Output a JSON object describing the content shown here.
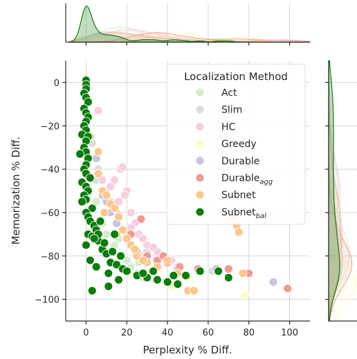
{
  "chart_data": {
    "type": "scatter",
    "xlabel": "Perplexity % Diff.",
    "ylabel": "Memorization % Diff.",
    "xlim": [
      -10,
      110
    ],
    "ylim": [
      -110,
      10
    ],
    "xticks": [
      0,
      20,
      40,
      60,
      80,
      100
    ],
    "yticks": [
      0,
      -20,
      -40,
      -60,
      -80,
      -100
    ],
    "xtick_labels": [
      "0",
      "20",
      "40",
      "60",
      "80",
      "100"
    ],
    "ytick_labels": [
      "0",
      "−20",
      "−40",
      "−60",
      "−80",
      "−100"
    ],
    "grid": true,
    "legend": {
      "title": "Localization Method",
      "placement": "upper-right",
      "entries": [
        {
          "label": "Act",
          "sub": ""
        },
        {
          "label": "Slim",
          "sub": ""
        },
        {
          "label": "HC",
          "sub": ""
        },
        {
          "label": "Greedy",
          "sub": ""
        },
        {
          "label": "Durable",
          "sub": ""
        },
        {
          "label": "Durable",
          "sub": "agg"
        },
        {
          "label": "Subnet",
          "sub": ""
        },
        {
          "label": "Subnet",
          "sub": "bal"
        }
      ]
    },
    "series": [
      {
        "name": "Act",
        "color": "#d4edcc",
        "points": [
          [
            8,
            -65
          ],
          [
            10,
            -70
          ],
          [
            14,
            -75
          ],
          [
            18,
            -80
          ],
          [
            22,
            -85
          ],
          [
            25,
            -88
          ],
          [
            28,
            -90
          ],
          [
            12,
            -78
          ],
          [
            5,
            -55
          ],
          [
            20,
            -82
          ],
          [
            16,
            -72
          ],
          [
            26,
            -83
          ]
        ]
      },
      {
        "name": "Slim",
        "color": "#dcdcdc",
        "points": [
          [
            3,
            -28
          ],
          [
            6,
            -40
          ],
          [
            10,
            -50
          ],
          [
            15,
            -60
          ],
          [
            20,
            -70
          ],
          [
            28,
            -80
          ],
          [
            35,
            -85
          ],
          [
            45,
            -88
          ],
          [
            62,
            -87
          ],
          [
            5,
            -45
          ],
          [
            12,
            -55
          ],
          [
            30,
            -78
          ]
        ]
      },
      {
        "name": "HC",
        "color": "#f7cde0",
        "points": [
          [
            6,
            -13
          ],
          [
            8,
            -45
          ],
          [
            12,
            -48
          ],
          [
            16,
            -55
          ],
          [
            17,
            -40
          ],
          [
            18,
            -39
          ],
          [
            20,
            -50
          ],
          [
            22,
            -60
          ],
          [
            24,
            -65
          ],
          [
            26,
            -70
          ],
          [
            30,
            -75
          ],
          [
            35,
            -78
          ],
          [
            38,
            -80
          ],
          [
            42,
            -82
          ],
          [
            45,
            -85
          ],
          [
            14,
            -45
          ],
          [
            19,
            -52
          ],
          [
            28,
            -72
          ],
          [
            33,
            -76
          ],
          [
            22,
            -67
          ]
        ]
      },
      {
        "name": "Greedy",
        "color": "#fdfcc0",
        "points": [
          [
            42,
            -94
          ],
          [
            78,
            -98
          ],
          [
            50,
            -90
          ],
          [
            30,
            -88
          ]
        ]
      },
      {
        "name": "Durable",
        "color": "#c9c2e0",
        "points": [
          [
            5,
            -35
          ],
          [
            8,
            -52
          ],
          [
            10,
            -55
          ],
          [
            15,
            -65
          ],
          [
            20,
            -72
          ],
          [
            25,
            -78
          ],
          [
            35,
            -83
          ],
          [
            45,
            -86
          ],
          [
            64,
            -86
          ],
          [
            92,
            -92
          ],
          [
            12,
            -60
          ]
        ]
      },
      {
        "name": "Durable_agg",
        "color": "#f49992",
        "points": [
          [
            27,
            -63
          ],
          [
            30,
            -80
          ],
          [
            35,
            -82
          ],
          [
            40,
            -83
          ],
          [
            46,
            -85
          ],
          [
            55,
            -86
          ],
          [
            70,
            -86
          ],
          [
            80,
            -88
          ],
          [
            99,
            -95
          ],
          [
            22,
            -70
          ],
          [
            38,
            -80
          ]
        ]
      },
      {
        "name": "Subnet",
        "color": "#fdc68a",
        "points": [
          [
            2,
            -25
          ],
          [
            6,
            -32
          ],
          [
            8,
            -50
          ],
          [
            10,
            -52
          ],
          [
            12,
            -56
          ],
          [
            14,
            -58
          ],
          [
            16,
            -62
          ],
          [
            18,
            -68
          ],
          [
            20,
            -72
          ],
          [
            22,
            -75
          ],
          [
            25,
            -80
          ],
          [
            30,
            -83
          ],
          [
            35,
            -85
          ],
          [
            40,
            -82
          ],
          [
            50,
            -96
          ],
          [
            53,
            -96
          ],
          [
            72,
            -62
          ],
          [
            74,
            -66
          ],
          [
            75,
            -69
          ],
          [
            77,
            -88
          ],
          [
            6,
            -42
          ],
          [
            9,
            -60
          ],
          [
            15,
            -70
          ],
          [
            24,
            -77
          ],
          [
            28,
            -82
          ],
          [
            45,
            -88
          ]
        ]
      },
      {
        "name": "Subnet_bal",
        "color": "#0a7d0a",
        "points": [
          [
            0,
            1
          ],
          [
            0,
            -1
          ],
          [
            0,
            -3
          ],
          [
            -1,
            -5
          ],
          [
            0,
            -7
          ],
          [
            1,
            -9
          ],
          [
            -1,
            -12
          ],
          [
            0,
            -14
          ],
          [
            1,
            -16
          ],
          [
            0,
            -18
          ],
          [
            -1,
            -20
          ],
          [
            0,
            -22
          ],
          [
            -2,
            -24
          ],
          [
            1,
            -25
          ],
          [
            0,
            -27
          ],
          [
            -1,
            -30
          ],
          [
            0,
            -32
          ],
          [
            -3,
            -33
          ],
          [
            1,
            -35
          ],
          [
            0,
            -38
          ],
          [
            -1,
            -40
          ],
          [
            0,
            -42
          ],
          [
            2,
            -44
          ],
          [
            -2,
            -46
          ],
          [
            0,
            -48
          ],
          [
            1,
            -50
          ],
          [
            -1,
            -52
          ],
          [
            0,
            -54
          ],
          [
            -2,
            -55
          ],
          [
            3,
            -58
          ],
          [
            0,
            -60
          ],
          [
            1,
            -62
          ],
          [
            2,
            -64
          ],
          [
            4,
            -66
          ],
          [
            5,
            -68
          ],
          [
            1,
            -70
          ],
          [
            3,
            -71
          ],
          [
            6,
            -73
          ],
          [
            0,
            -75
          ],
          [
            8,
            -77
          ],
          [
            10,
            -79
          ],
          [
            2,
            -82
          ],
          [
            12,
            -83
          ],
          [
            15,
            -84
          ],
          [
            5,
            -85
          ],
          [
            18,
            -86
          ],
          [
            20,
            -87
          ],
          [
            11,
            -88
          ],
          [
            25,
            -89
          ],
          [
            30,
            -90
          ],
          [
            35,
            -91
          ],
          [
            40,
            -92
          ],
          [
            45,
            -93
          ],
          [
            3,
            -96
          ],
          [
            11,
            -94
          ],
          [
            16,
            -91
          ],
          [
            28,
            -88
          ],
          [
            33,
            -87
          ],
          [
            43,
            -89
          ],
          [
            49,
            -89
          ],
          [
            56,
            -87
          ],
          [
            65,
            -87
          ],
          [
            70,
            -90
          ],
          [
            6,
            -70
          ],
          [
            9,
            -74
          ],
          [
            13,
            -78
          ],
          [
            17,
            -80
          ],
          [
            14,
            -70
          ],
          [
            7,
            -64
          ],
          [
            4,
            -72
          ]
        ]
      }
    ],
    "marginal_top": {
      "type": "kde"
    },
    "marginal_right": {
      "type": "kde"
    }
  }
}
